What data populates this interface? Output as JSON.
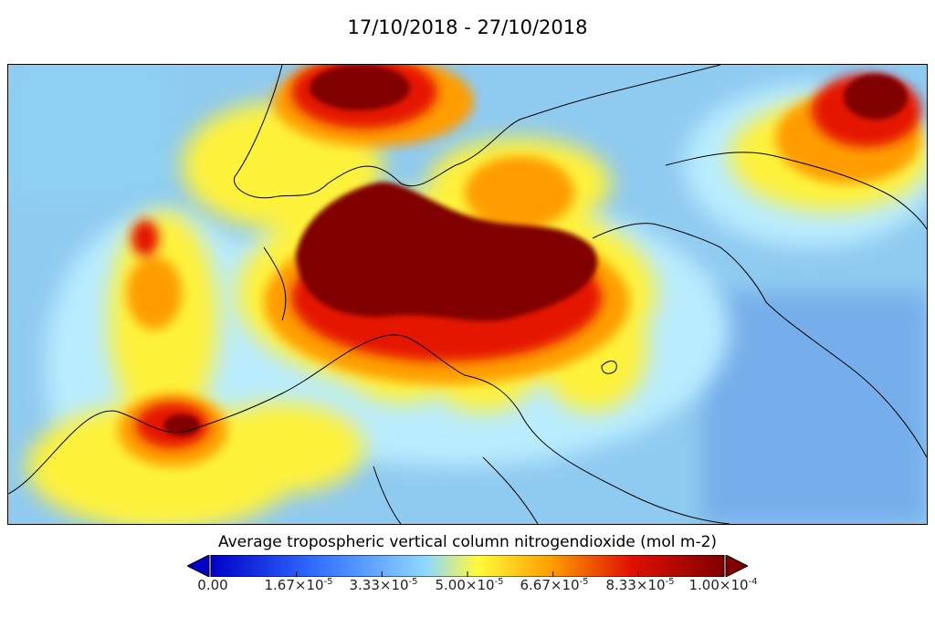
{
  "title": "17/10/2018 - 27/10/2018",
  "colorbar": {
    "label": "Average tropospheric vertical column nitrogendioxide (mol m-2)",
    "ticks": [
      {
        "base": "0.00",
        "exp": ""
      },
      {
        "base": "1.67×10",
        "exp": "-5"
      },
      {
        "base": "3.33×10",
        "exp": "-5"
      },
      {
        "base": "5.00×10",
        "exp": "-5"
      },
      {
        "base": "6.67×10",
        "exp": "-5"
      },
      {
        "base": "8.33×10",
        "exp": "-5"
      },
      {
        "base": "1.00×10",
        "exp": "-4"
      }
    ],
    "colors": [
      "#0000c8",
      "#2f6cff",
      "#8fd8ff",
      "#fffb3a",
      "#ffa000",
      "#e01000",
      "#800000"
    ]
  }
}
